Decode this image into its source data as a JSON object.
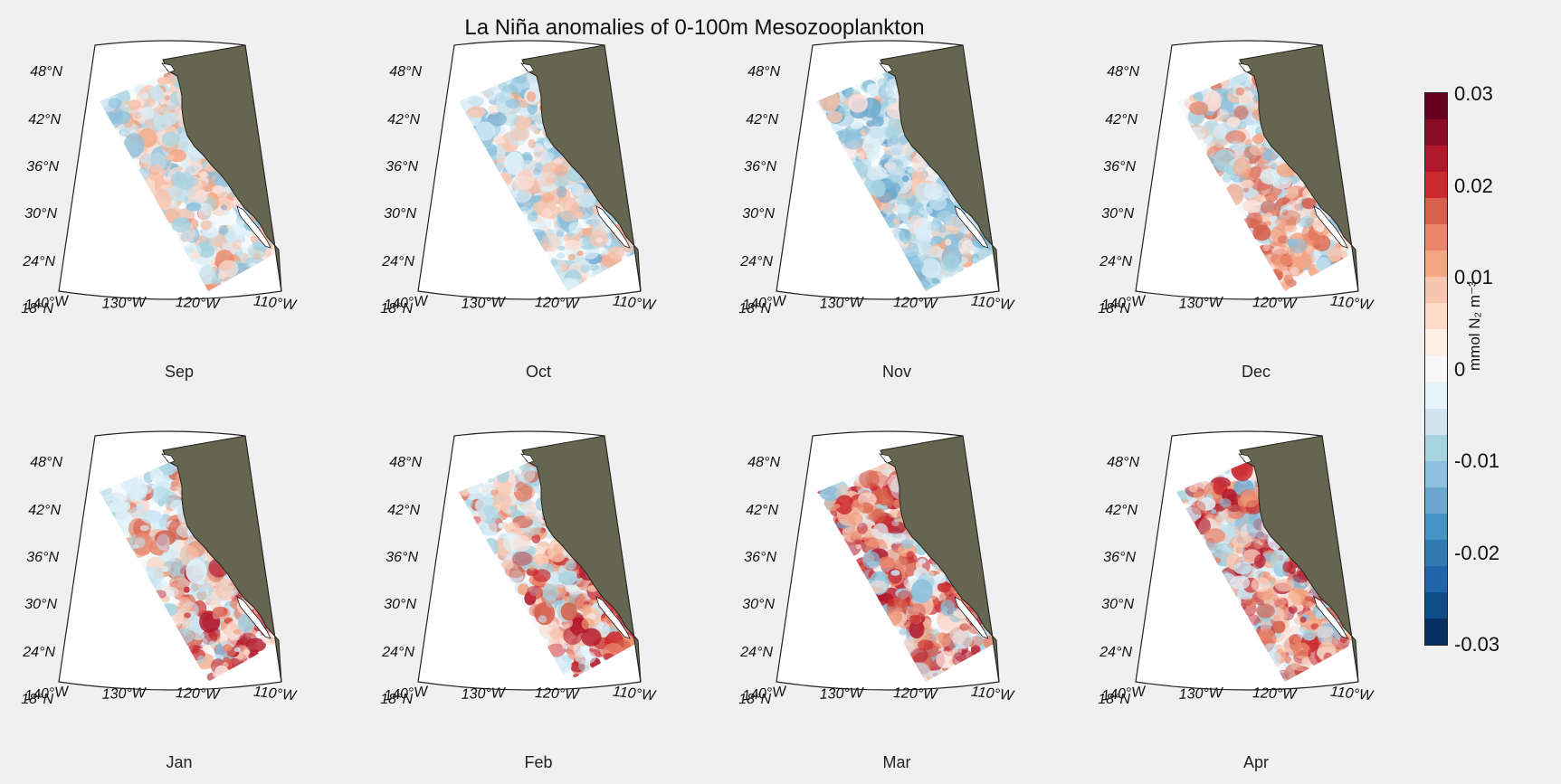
{
  "title": "La Niña anomalies of 0-100m Mesozooplankton",
  "panels": [
    {
      "month": "Sep",
      "pattern": "mixed"
    },
    {
      "month": "Oct",
      "pattern": "mixed-blue"
    },
    {
      "month": "Nov",
      "pattern": "blue"
    },
    {
      "month": "Dec",
      "pattern": "mixed-red"
    },
    {
      "month": "Jan",
      "pattern": "red-south"
    },
    {
      "month": "Feb",
      "pattern": "red-south"
    },
    {
      "month": "Mar",
      "pattern": "strong-red"
    },
    {
      "month": "Apr",
      "pattern": "strong-red"
    }
  ],
  "axes": {
    "lat_labels": [
      "48°N",
      "42°N",
      "36°N",
      "30°N",
      "24°N",
      "18°N"
    ],
    "lon_labels": [
      "140°W",
      "130°W",
      "120°W",
      "110°W"
    ]
  },
  "colorbar": {
    "tick_labels": [
      "0.03",
      "0.02",
      "0.01",
      "0",
      "-0.01",
      "-0.02",
      "-0.03"
    ],
    "units": "mmol N₂ m⁻³",
    "colors_top_to_bottom": [
      "#67001f",
      "#8a0b24",
      "#b2182b",
      "#cb2a2f",
      "#d6604d",
      "#e9856a",
      "#f4a582",
      "#f8c6b0",
      "#fddbc7",
      "#fdeee6",
      "#f7f7f7",
      "#e6f3fb",
      "#d1e5f0",
      "#a7d3e0",
      "#8cc0dc",
      "#6aa8cf",
      "#4393c3",
      "#2f79b5",
      "#2166ac",
      "#0f4c8a",
      "#053061"
    ]
  },
  "colors": {
    "land": "#666650",
    "background": "#f0f0f0",
    "ocean_fill": "#ffffff"
  }
}
